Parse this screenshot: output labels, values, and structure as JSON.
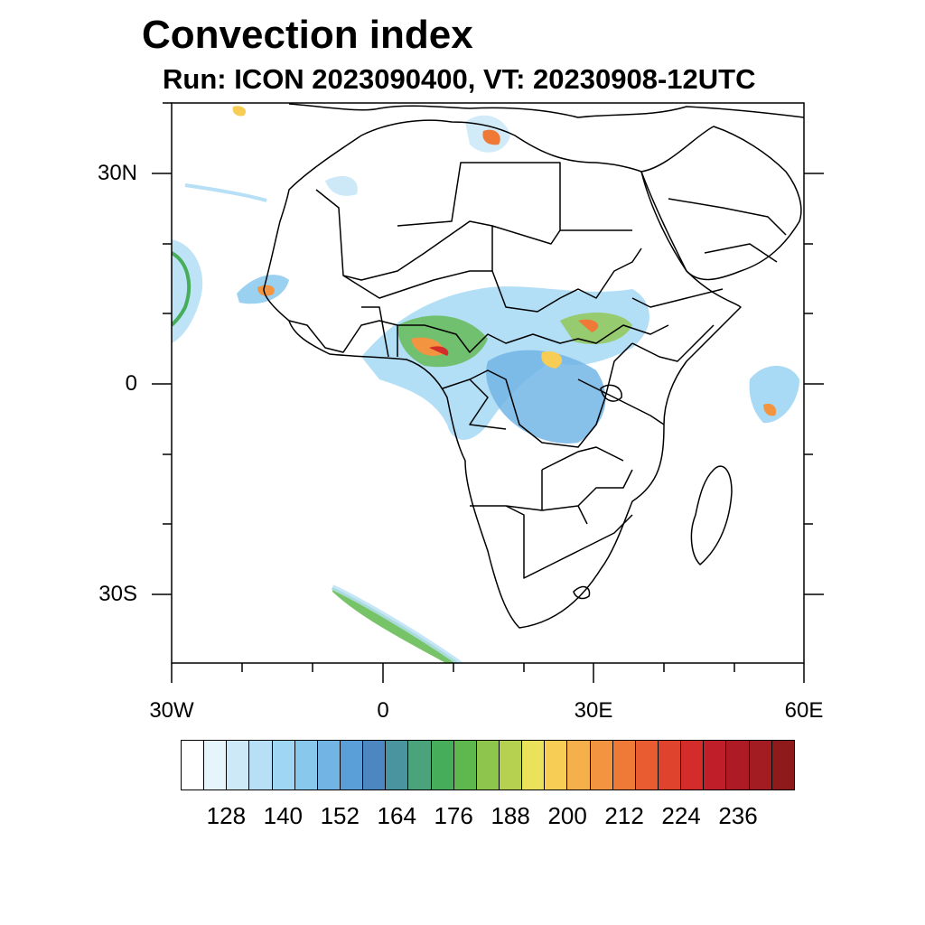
{
  "title": "Convection index",
  "subtitle": "Run: ICON 2023090400,  VT: 20230908-12UTC",
  "axes": {
    "lat_labels": [
      "30N",
      "0",
      "30S"
    ],
    "lon_labels": [
      "30W",
      "0",
      "30E",
      "60E"
    ]
  },
  "colorbar": {
    "colors": [
      "#ffffff",
      "#e6f4fb",
      "#cde9f7",
      "#b7e0f6",
      "#9fd6f4",
      "#88c8ed",
      "#72b5e5",
      "#5a9fd8",
      "#4c87c2",
      "#4a94a0",
      "#4aa37a",
      "#46ad5a",
      "#5fb84d",
      "#8ec54d",
      "#b6d050",
      "#e9e25a",
      "#f7cd55",
      "#f5b04b",
      "#f39440",
      "#ef7a38",
      "#e95b31",
      "#df422d",
      "#d42c2b",
      "#c01f29",
      "#ae1b25",
      "#a21c22",
      "#8e1a1b"
    ],
    "tick_labels": [
      "128",
      "140",
      "152",
      "164",
      "176",
      "188",
      "200",
      "212",
      "224",
      "236"
    ]
  }
}
